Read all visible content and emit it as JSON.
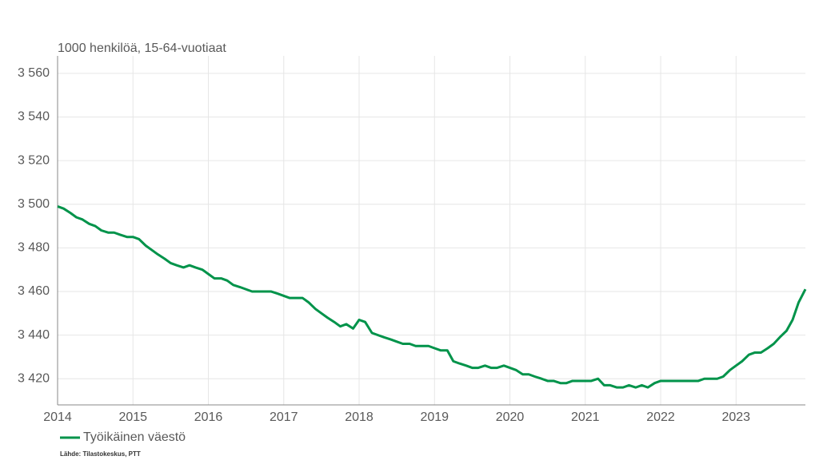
{
  "chart_data": {
    "type": "line",
    "y_axis_label": "1000 henkilöä, 15-64-vuotiaat",
    "source": "Lähde: Tilastokeskus, PTT",
    "x": [
      2014,
      2014.08,
      2014.17,
      2014.25,
      2014.33,
      2014.42,
      2014.5,
      2014.58,
      2014.67,
      2014.75,
      2014.83,
      2014.92,
      2015,
      2015.08,
      2015.17,
      2015.25,
      2015.33,
      2015.42,
      2015.5,
      2015.58,
      2015.67,
      2015.75,
      2015.83,
      2015.92,
      2016,
      2016.08,
      2016.17,
      2016.25,
      2016.33,
      2016.42,
      2016.5,
      2016.58,
      2016.67,
      2016.75,
      2016.83,
      2016.92,
      2017,
      2017.08,
      2017.17,
      2017.25,
      2017.33,
      2017.42,
      2017.5,
      2017.58,
      2017.67,
      2017.75,
      2017.83,
      2017.92,
      2018,
      2018.08,
      2018.17,
      2018.25,
      2018.33,
      2018.42,
      2018.5,
      2018.58,
      2018.67,
      2018.75,
      2018.83,
      2018.92,
      2019,
      2019.08,
      2019.17,
      2019.25,
      2019.33,
      2019.42,
      2019.5,
      2019.58,
      2019.67,
      2019.75,
      2019.83,
      2019.92,
      2020,
      2020.08,
      2020.17,
      2020.25,
      2020.33,
      2020.42,
      2020.5,
      2020.58,
      2020.67,
      2020.75,
      2020.83,
      2020.92,
      2021,
      2021.08,
      2021.17,
      2021.25,
      2021.33,
      2021.42,
      2021.5,
      2021.58,
      2021.67,
      2021.75,
      2021.83,
      2021.92,
      2022,
      2022.08,
      2022.17,
      2022.25,
      2022.33,
      2022.42,
      2022.5,
      2022.58,
      2022.67,
      2022.75,
      2022.83,
      2022.92,
      2023,
      2023.08,
      2023.17,
      2023.25,
      2023.33,
      2023.42,
      2023.5,
      2023.58,
      2023.67,
      2023.75,
      2023.83,
      2023.92
    ],
    "series": [
      {
        "name": "Työikäinen väestö",
        "color": "#00934a",
        "values": [
          3499,
          3498,
          3496,
          3494,
          3493,
          3491,
          3490,
          3488,
          3487,
          3487,
          3486,
          3485,
          3485,
          3484,
          3481,
          3479,
          3477,
          3475,
          3473,
          3472,
          3471,
          3472,
          3471,
          3470,
          3468,
          3466,
          3466,
          3465,
          3463,
          3462,
          3461,
          3460,
          3460,
          3460,
          3460,
          3459,
          3458,
          3457,
          3457,
          3457,
          3455,
          3452,
          3450,
          3448,
          3446,
          3444,
          3445,
          3443,
          3447,
          3446,
          3441,
          3440,
          3439,
          3438,
          3437,
          3436,
          3436,
          3435,
          3435,
          3435,
          3434,
          3433,
          3433,
          3428,
          3427,
          3426,
          3425,
          3425,
          3426,
          3425,
          3425,
          3426,
          3425,
          3424,
          3422,
          3422,
          3421,
          3420,
          3419,
          3419,
          3418,
          3418,
          3419,
          3419,
          3419,
          3419,
          3420,
          3417,
          3417,
          3416,
          3416,
          3417,
          3416,
          3417,
          3416,
          3418,
          3419,
          3419,
          3419,
          3419,
          3419,
          3419,
          3419,
          3420,
          3420,
          3420,
          3421,
          3424,
          3426,
          3428,
          3431,
          3432,
          3432,
          3434,
          3436,
          3439,
          3442,
          3447,
          3455,
          3461
        ]
      }
    ],
    "xlim": [
      2014,
      2023.92
    ],
    "xticks": [
      2014,
      2015,
      2016,
      2017,
      2018,
      2019,
      2020,
      2021,
      2022,
      2023
    ],
    "ylim": [
      3408,
      3568
    ],
    "yticks": [
      {
        "value": 3420,
        "label": "3 420"
      },
      {
        "value": 3440,
        "label": "3 440"
      },
      {
        "value": 3460,
        "label": "3 460"
      },
      {
        "value": 3480,
        "label": "3 480"
      },
      {
        "value": 3500,
        "label": "3 500"
      },
      {
        "value": 3520,
        "label": "3 520"
      },
      {
        "value": 3540,
        "label": "3 540"
      },
      {
        "value": 3560,
        "label": "3 560"
      }
    ],
    "grid": true,
    "legend": "bottom-left"
  }
}
